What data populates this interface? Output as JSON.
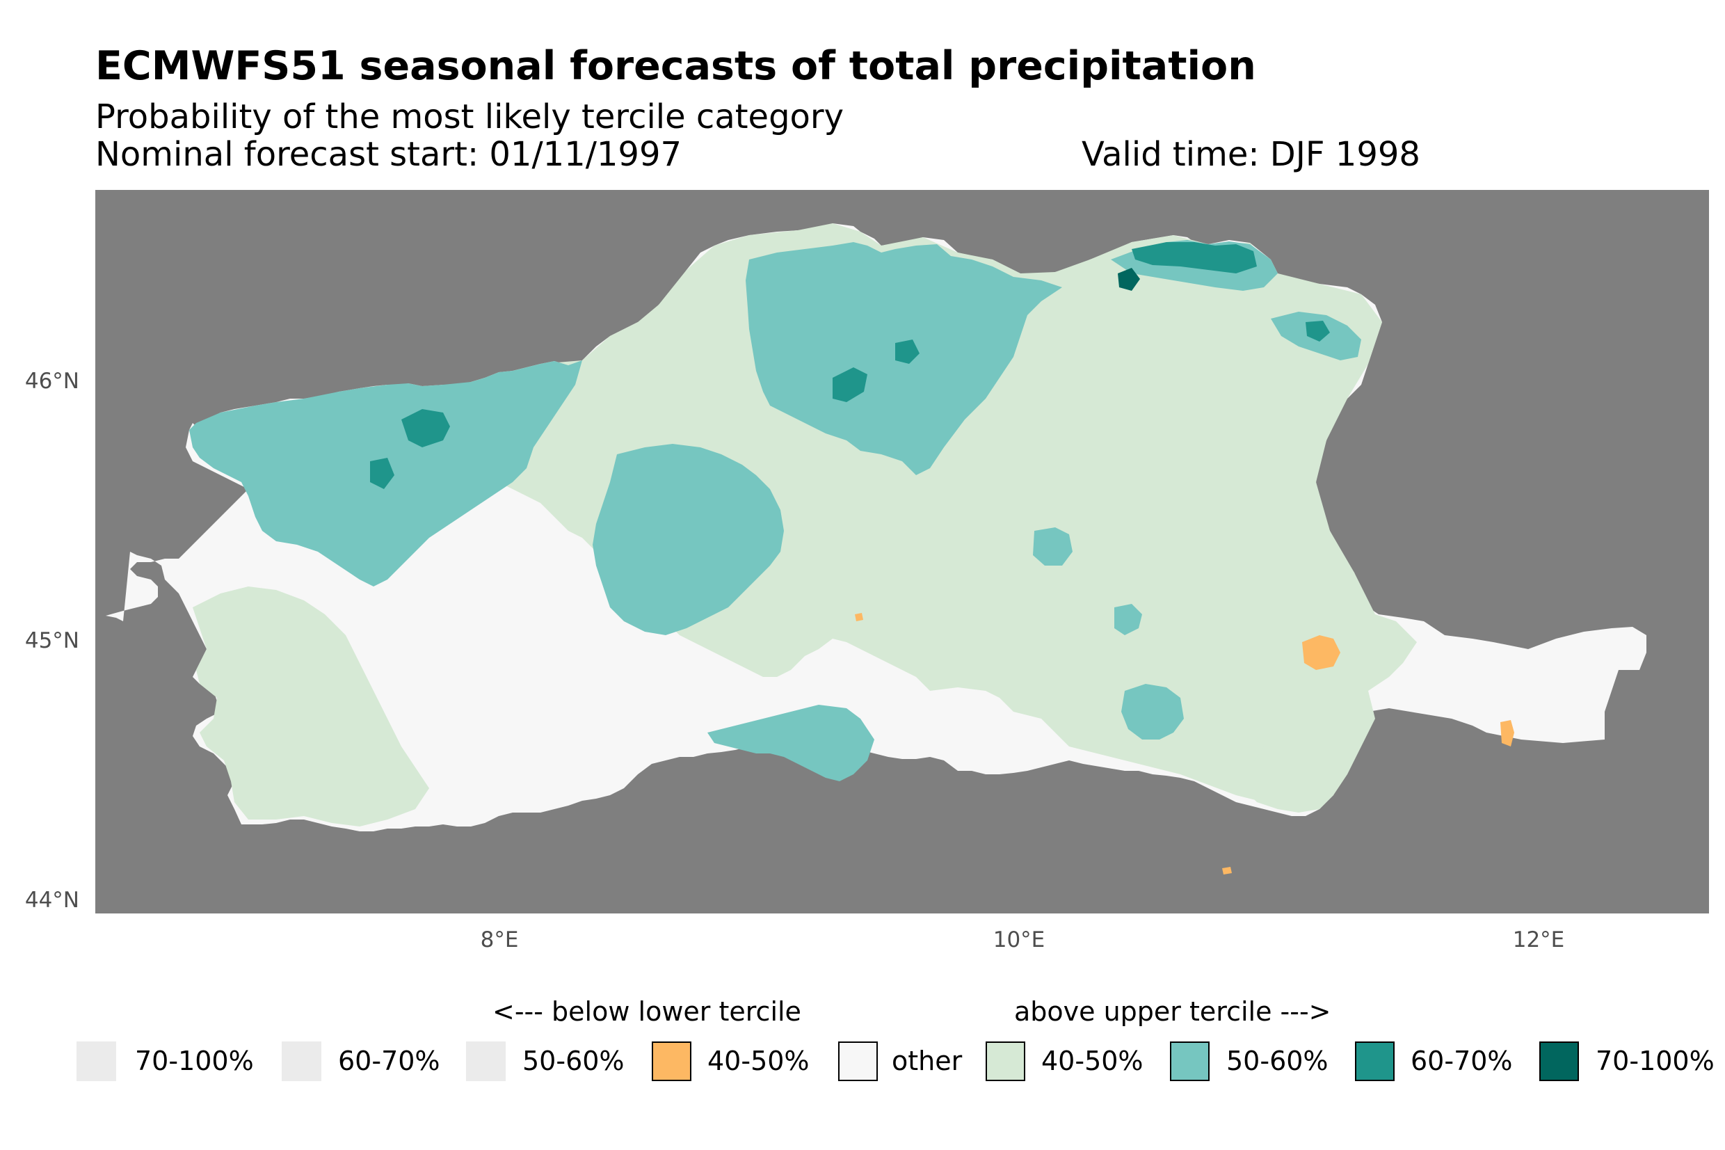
{
  "title": "ECMWFS51 seasonal forecasts of total precipitation",
  "subtitle": "Probability of the most likely tercile category",
  "forecast_start": "Nominal forecast start: 01/11/1997",
  "valid_time": "Valid time: DJF 1998",
  "axes": {
    "y_ticks": [
      "46°N",
      "45°N",
      "44°N"
    ],
    "x_ticks": [
      "8°E",
      "10°E",
      "12°E"
    ]
  },
  "legend": {
    "below_caption": "<--- below lower tercile",
    "above_caption": "above upper tercile --->",
    "items": [
      {
        "label": "70-100%",
        "color": "#ebebeb"
      },
      {
        "label": "60-70%",
        "color": "#ebebeb"
      },
      {
        "label": "50-60%",
        "color": "#ebebeb"
      },
      {
        "label": "40-50%",
        "color": "#fdb863"
      },
      {
        "label": "other",
        "color": "#f7f7f7"
      },
      {
        "label": "40-50%",
        "color": "#d6e9d5"
      },
      {
        "label": "50-60%",
        "color": "#76c6c0"
      },
      {
        "label": "60-70%",
        "color": "#1f958b"
      },
      {
        "label": "70-100%",
        "color": "#01665e"
      }
    ]
  },
  "colors": {
    "background_land_mask": "#7f7f7f",
    "other": "#f7f7f7",
    "above_40_50": "#d6e9d5",
    "above_50_60": "#76c6c0",
    "above_60_70": "#1f958b",
    "above_70_100": "#01665e",
    "below_40_50": "#fdb863"
  }
}
